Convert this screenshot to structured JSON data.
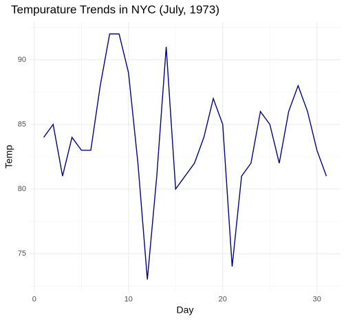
{
  "chart_data": {
    "type": "line",
    "title": "Tempurature Trends in NYC (July, 1973)",
    "x_label": "Day",
    "y_label": "Temp",
    "x": [
      1,
      2,
      3,
      4,
      5,
      6,
      7,
      8,
      9,
      10,
      11,
      12,
      13,
      14,
      15,
      16,
      17,
      18,
      19,
      20,
      21,
      22,
      23,
      24,
      25,
      26,
      27,
      28,
      29,
      30,
      31
    ],
    "series": [
      {
        "name": "Temp",
        "color": "#000080",
        "values": [
          84,
          85,
          81,
          84,
          83,
          83,
          88,
          92,
          92,
          89,
          82,
          73,
          81,
          91,
          80,
          81,
          82,
          84,
          87,
          85,
          74,
          81,
          82,
          86,
          85,
          82,
          86,
          88,
          86,
          83,
          81
        ]
      }
    ],
    "xlim": [
      -0.5,
      32.5
    ],
    "xticks": [
      0,
      10,
      20,
      30
    ],
    "x_minor_ticks": [
      5,
      15,
      25
    ],
    "ylim": [
      72.05,
      92.95
    ],
    "yticks": [
      75,
      80,
      85,
      90
    ],
    "y_minor_ticks": [
      72.5,
      77.5,
      82.5,
      87.5,
      92.5
    ],
    "grid": true
  }
}
